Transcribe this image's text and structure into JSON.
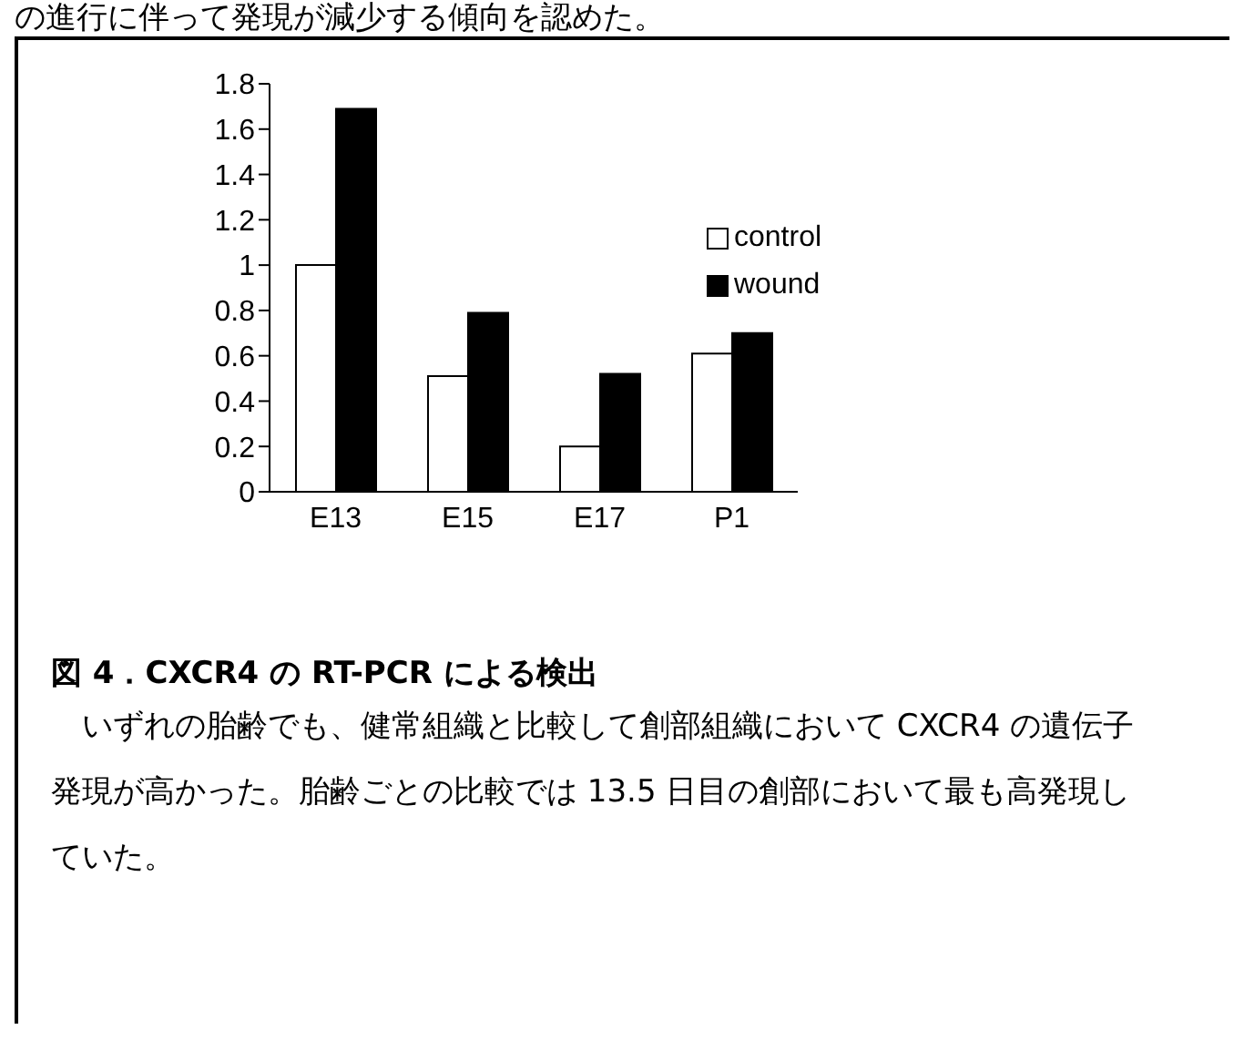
{
  "chart_data": {
    "type": "bar",
    "title": "図 4．CXCR4 の RT-PCR による検出",
    "categories": [
      "E13",
      "E15",
      "E17",
      "P1"
    ],
    "series": [
      {
        "name": "control",
        "color": "#ffffff",
        "values": [
          1.0,
          0.51,
          0.2,
          0.61
        ]
      },
      {
        "name": "wound",
        "color": "#000000",
        "values": [
          1.69,
          0.79,
          0.52,
          0.7
        ]
      }
    ],
    "ylim": [
      0,
      1.8
    ],
    "yticks": [
      0,
      0.2,
      0.4,
      0.6,
      0.8,
      1,
      1.2,
      1.4,
      1.6,
      1.8
    ],
    "legend": "top right",
    "annotations": [
      "の進行に伴って発現が減少する傾向を認めた。",
      "いずれの胎齢でも、健常組織と比較して創部組織において CXCR4 の遺伝子発現が高かった。胎齢ごとの比較では 13.5 日目の創部において最も高発現していた。"
    ]
  }
}
